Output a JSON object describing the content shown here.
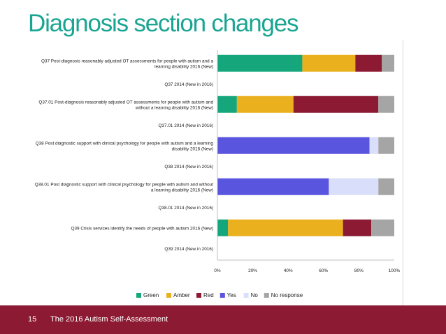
{
  "slide": {
    "title": "Diagnosis section changes",
    "slide_number": "15",
    "footer_text": "The 2016 Autism Self-Assessment"
  },
  "chart_data": {
    "type": "bar",
    "orientation": "horizontal",
    "stacked": true,
    "categories": [
      [
        "Q37 Post-diagnosis reasonably adjusted OT assessments for people with autism and a",
        "learning disability 2016 (New)"
      ],
      [
        "Q37 2014 (New in 2016)"
      ],
      [
        "Q37.01 Post-diagnosis reasonably adjusted OT assessments for people with autism and",
        "without a learning disability 2016 (New)"
      ],
      [
        "Q37.01 2014 (New in 2016)"
      ],
      [
        "Q38 Post diagnostic support with clinical psychology for people with autism and a learning",
        "disability 2016 (New)"
      ],
      [
        "Q38 2014 (New in 2016)"
      ],
      [
        "Q38.01 Post diagnostic support with clinical psychology for people with autism and without",
        "a learning disability 2016 (New)"
      ],
      [
        "Q38.01 2014 (New in 2016)"
      ],
      [
        "Q39 Crisis services identify the needs of people with autism 2016 (New)"
      ],
      [
        "Q39 2014 (New in 2016)"
      ]
    ],
    "series": [
      {
        "name": "Green",
        "color": "#15a77b",
        "values": [
          48,
          0,
          11,
          0,
          0,
          0,
          0,
          0,
          6,
          0
        ]
      },
      {
        "name": "Amber",
        "color": "#eab01e",
        "values": [
          30,
          0,
          32,
          0,
          0,
          0,
          0,
          0,
          65,
          0
        ]
      },
      {
        "name": "Red",
        "color": "#8b1a32",
        "values": [
          15,
          0,
          48,
          0,
          0,
          0,
          0,
          0,
          16,
          0
        ]
      },
      {
        "name": "Yes",
        "color": "#5a55de",
        "values": [
          0,
          0,
          0,
          0,
          86,
          0,
          63,
          0,
          0,
          0
        ]
      },
      {
        "name": "No",
        "color": "#d9dffb",
        "values": [
          0,
          0,
          0,
          0,
          5,
          0,
          28,
          0,
          0,
          0
        ]
      },
      {
        "name": "No response",
        "color": "#a5a5a5",
        "values": [
          7,
          0,
          9,
          0,
          9,
          0,
          9,
          0,
          13,
          0
        ]
      }
    ],
    "xlim": [
      0,
      100
    ],
    "x_ticks": [
      "0%",
      "20%",
      "40%",
      "60%",
      "80%",
      "100%"
    ],
    "legend": "bottom",
    "grid": false
  }
}
